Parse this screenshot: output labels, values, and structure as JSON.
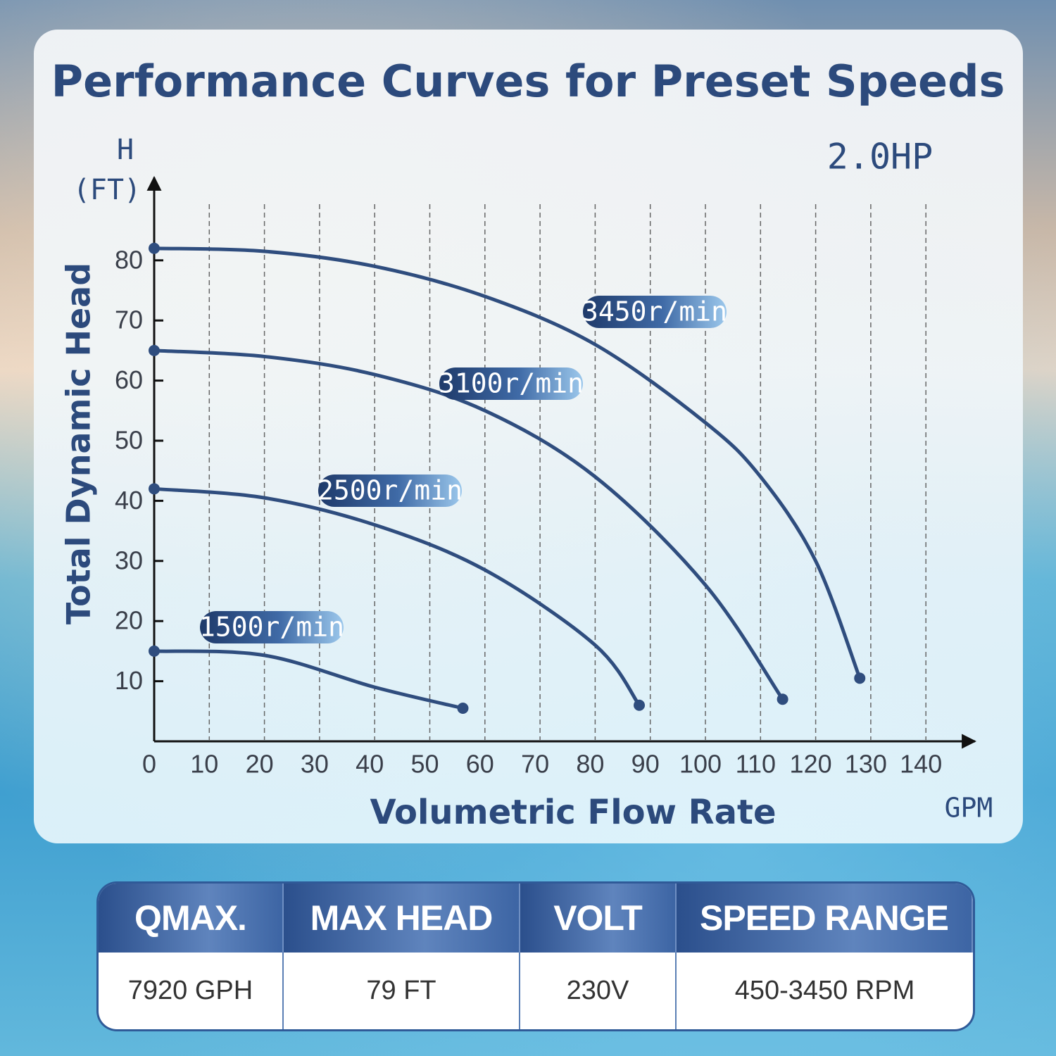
{
  "chart_data": {
    "type": "line",
    "title": "Performance Curves for Preset Speeds",
    "annotation": "2.0HP",
    "y_unit_lines": [
      "H",
      "(FT)"
    ],
    "y_label": "Total Dynamic Head",
    "x_label": "Volumetric Flow Rate",
    "x_unit": "GPM",
    "xlim": [
      0,
      148
    ],
    "ylim": [
      0,
      92
    ],
    "xticks": [
      0,
      10,
      20,
      30,
      40,
      50,
      60,
      70,
      80,
      90,
      100,
      110,
      120,
      130,
      140
    ],
    "yticks": [
      10,
      20,
      30,
      40,
      50,
      60,
      70,
      80
    ],
    "grid": true,
    "series": [
      {
        "name": "3450r/min",
        "color": "#2f4d7e",
        "x": [
          0,
          20,
          40,
          60,
          80,
          100,
          110,
          120,
          128
        ],
        "values": [
          82,
          81.5,
          79,
          74,
          66,
          53,
          44,
          30,
          10.5
        ]
      },
      {
        "name": "3100r/min",
        "color": "#2f4d7e",
        "x": [
          0,
          20,
          40,
          60,
          80,
          100,
          114
        ],
        "values": [
          65,
          64,
          61,
          55,
          44,
          26,
          7
        ]
      },
      {
        "name": "2500r/min",
        "color": "#2f4d7e",
        "x": [
          0,
          20,
          40,
          60,
          80,
          88
        ],
        "values": [
          42,
          40.5,
          36,
          28.5,
          16,
          6
        ]
      },
      {
        "name": "1500r/min",
        "color": "#2f4d7e",
        "x": [
          0,
          20,
          40,
          56
        ],
        "values": [
          15,
          14.3,
          9,
          5.5
        ]
      }
    ]
  },
  "table": {
    "headers": [
      "QMAX.",
      "MAX HEAD",
      "VOLT",
      "SPEED RANGE"
    ],
    "rows": [
      [
        "7920 GPH",
        "79 FT",
        "230V",
        "450-3450 RPM"
      ]
    ]
  }
}
